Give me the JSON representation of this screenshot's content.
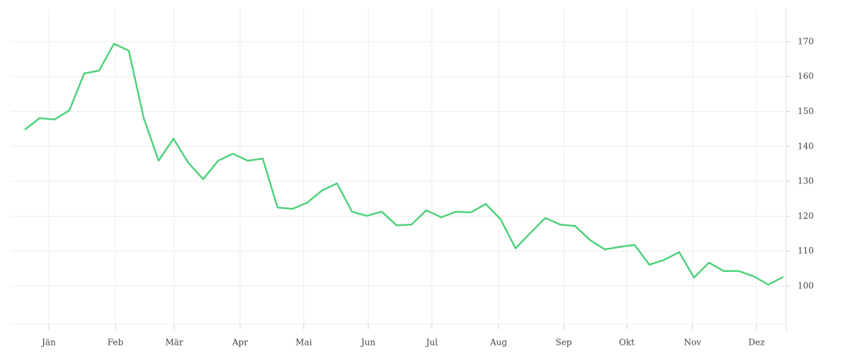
{
  "chart_data": {
    "type": "line",
    "values": [
      144.8,
      148.1,
      147.7,
      150.3,
      160.9,
      161.7,
      169.4,
      167.4,
      148.1,
      135.9,
      142.2,
      135.3,
      130.6,
      135.9,
      137.9,
      135.9,
      136.5,
      122.5,
      122.1,
      123.9,
      127.4,
      129.4,
      121.3,
      120.1,
      121.3,
      117.4,
      117.6,
      121.7,
      119.7,
      121.3,
      121.1,
      123.5,
      119.1,
      110.8,
      115.2,
      119.5,
      117.6,
      117.2,
      113.2,
      110.5,
      111.2,
      111.8,
      106.1,
      107.5,
      109.7,
      102.4,
      106.7,
      104.3,
      104.3,
      102.8,
      100.4,
      102.6
    ],
    "color": "#4fd17a",
    "xlim": [
      -0.9,
      51.2
    ],
    "xticks": [
      {
        "value": 1.62,
        "label": "Jän"
      },
      {
        "value": 6.1,
        "label": "Feb"
      },
      {
        "value": 10.05,
        "label": "Mär"
      },
      {
        "value": 14.48,
        "label": "Apr"
      },
      {
        "value": 18.76,
        "label": "Mai"
      },
      {
        "value": 23.1,
        "label": "Jun"
      },
      {
        "value": 27.38,
        "label": "Jul"
      },
      {
        "value": 31.86,
        "label": "Aug"
      },
      {
        "value": 36.24,
        "label": "Sep"
      },
      {
        "value": 40.48,
        "label": "Okt"
      },
      {
        "value": 44.9,
        "label": "Nov"
      },
      {
        "value": 49.2,
        "label": "Dez"
      }
    ],
    "ylim": [
      89.05,
      179.5
    ],
    "yticks": [
      100,
      110,
      120,
      130,
      140,
      150,
      160,
      170
    ],
    "grid": true
  }
}
